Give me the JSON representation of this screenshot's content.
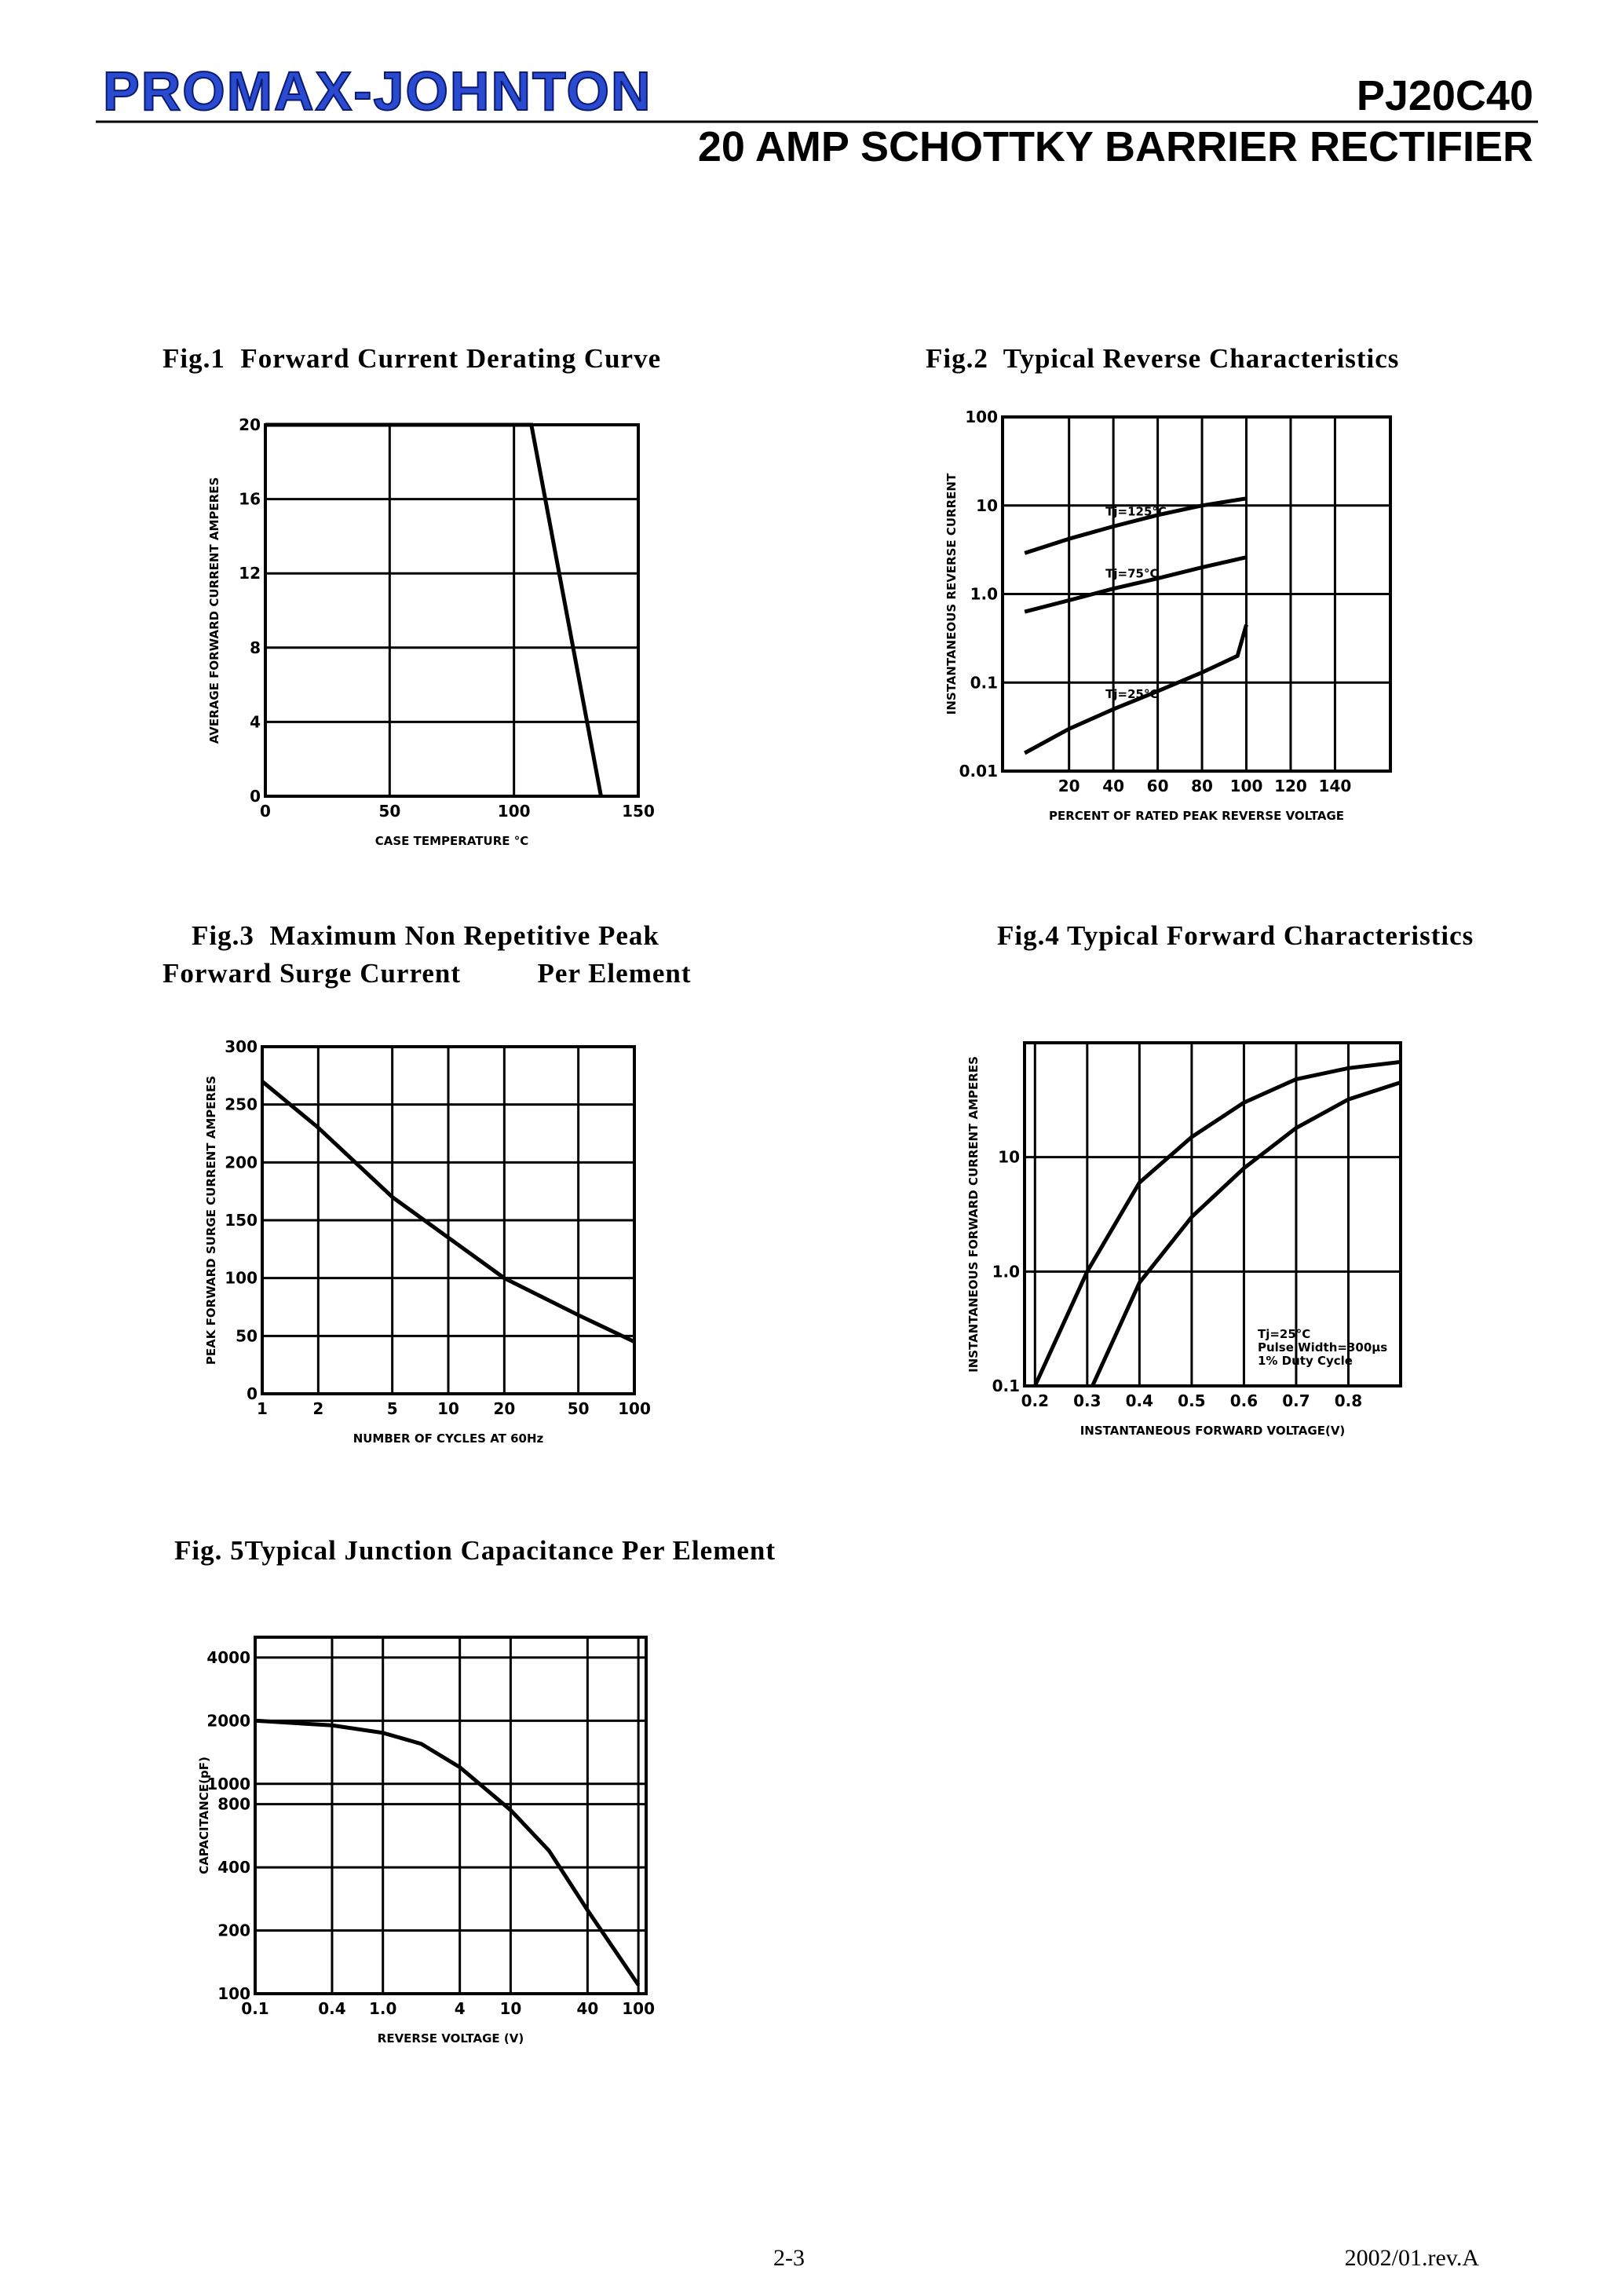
{
  "header": {
    "logo": "PROMAX-JOHNTON",
    "part_number": "PJ20C40",
    "title": "20 AMP SCHOTTKY BARRIER RECTIFIER"
  },
  "footer": {
    "page": "2-3",
    "revision": "2002/01.rev.A"
  },
  "chart_data": [
    {
      "type": "line",
      "title": "Fig.1  Forward Current Derating Curve",
      "xlabel": "CASE TEMPERATURE °C",
      "ylabel": "AVERAGE FORWARD CURRENT AMPERES",
      "xlim": [
        0,
        150
      ],
      "ylim": [
        0,
        20
      ],
      "xticks": [
        0,
        50,
        100,
        150
      ],
      "yticks": [
        0,
        4,
        8,
        12,
        16,
        20
      ],
      "series": [
        {
          "color": "#000000",
          "x": [
            0,
            107,
            135
          ],
          "values": [
            20,
            20,
            0
          ]
        }
      ]
    },
    {
      "type": "line",
      "title": "Fig.2  Typical Reverse Characteristics",
      "xlabel": "PERCENT OF RATED PEAK REVERSE VOLTAGE",
      "ylabel": "INSTANTANEOUS REVERSE CURRENT",
      "xlim": [
        -10,
        165
      ],
      "ylim": [
        0.01,
        100
      ],
      "yscale": "log",
      "xticks": [
        20,
        40,
        60,
        80,
        100,
        120,
        140
      ],
      "yticks": [
        0.01,
        0.1,
        {
          "value": 1,
          "label": "1.0"
        },
        10,
        100
      ],
      "series": [
        {
          "name": "Tj=125°C",
          "color": "#000000",
          "x": [
            0,
            20,
            40,
            60,
            80,
            100
          ],
          "values": [
            2.9,
            4.2,
            5.8,
            7.8,
            10,
            12
          ]
        },
        {
          "name": "Tj=75°C",
          "color": "#000000",
          "x": [
            0,
            20,
            40,
            60,
            80,
            100
          ],
          "values": [
            0.63,
            0.85,
            1.15,
            1.5,
            2,
            2.6
          ]
        },
        {
          "name": "Tj=25°C",
          "color": "#000000",
          "x": [
            0,
            20,
            40,
            60,
            80,
            96,
            100
          ],
          "values": [
            0.016,
            0.03,
            0.05,
            0.08,
            0.13,
            0.2,
            0.45
          ]
        }
      ]
    },
    {
      "type": "line",
      "title": "Fig.3  Maximum Non Repetitive Peak",
      "subtitle": "Forward Surge Current          Per Element",
      "xlabel": "NUMBER OF CYCLES AT 60Hz",
      "ylabel": "PEAK FORWARD SURGE CURRENT AMPERES",
      "xlim": [
        1,
        100
      ],
      "ylim": [
        0,
        300
      ],
      "xscale": "log",
      "xticks": [
        1,
        2,
        5,
        10,
        20,
        50,
        100
      ],
      "yticks": [
        0,
        50,
        100,
        150,
        200,
        250,
        300
      ],
      "series": [
        {
          "color": "#000000",
          "x": [
            1,
            2,
            5,
            10,
            20,
            50,
            100
          ],
          "values": [
            270,
            230,
            170,
            135,
            100,
            68,
            45
          ]
        }
      ]
    },
    {
      "type": "line",
      "title": "Fig.4 Typical Forward Characteristics",
      "xlabel": "INSTANTANEOUS FORWARD VOLTAGE(V)",
      "ylabel": "INSTANTANEOUS FORWARD CURRENT AMPERES",
      "xlim": [
        0.18,
        0.9
      ],
      "ylim": [
        0.1,
        100
      ],
      "yscale": "log",
      "xticks": [
        0.2,
        0.3,
        0.4,
        0.5,
        0.6,
        0.7,
        0.8
      ],
      "yticks": [
        0.1,
        {
          "value": 1,
          "label": "1.0"
        },
        10
      ],
      "annotations": [
        "Tj=25°C",
        "Pulse Width=300μs",
        "1% Duty Cycle"
      ],
      "series": [
        {
          "color": "#000000",
          "x": [
            0.2,
            0.3,
            0.4,
            0.5,
            0.6,
            0.7,
            0.8,
            0.9
          ],
          "values": [
            0.1,
            1,
            6,
            15,
            30,
            48,
            60,
            68
          ]
        },
        {
          "color": "#000000",
          "x": [
            0.31,
            0.4,
            0.5,
            0.6,
            0.7,
            0.8,
            0.9
          ],
          "values": [
            0.1,
            0.8,
            3,
            8,
            18,
            32,
            45
          ]
        }
      ]
    },
    {
      "type": "line",
      "title": "Fig. 5Typical Junction Capacitance Per Element",
      "xlabel": "REVERSE VOLTAGE (V)",
      "ylabel": "CAPACITANCE(pF)",
      "xlim": [
        0.1,
        115
      ],
      "ylim": [
        100,
        5000
      ],
      "xscale": "log",
      "yscale": "log",
      "xticks": [
        0.1,
        0.4,
        {
          "value": 1,
          "label": "1.0"
        },
        4,
        10,
        40,
        100
      ],
      "yticks": [
        100,
        200,
        400,
        800,
        1000,
        2000,
        4000
      ],
      "series": [
        {
          "color": "#000000",
          "x": [
            0.1,
            0.4,
            1,
            2,
            4,
            10,
            20,
            40,
            100
          ],
          "values": [
            2000,
            1900,
            1750,
            1550,
            1200,
            750,
            480,
            250,
            110
          ]
        }
      ]
    }
  ]
}
